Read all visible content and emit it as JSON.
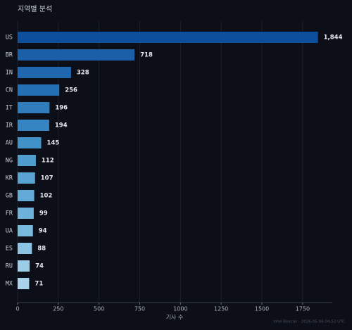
{
  "chart_data": {
    "type": "bar",
    "orientation": "horizontal",
    "title": "지역별 분석",
    "xlabel": "기사 수",
    "footer": "Intel Beacon · 2026-05-06 04:52 UTC",
    "categories": [
      "US",
      "BR",
      "IN",
      "CN",
      "IT",
      "IR",
      "AU",
      "NG",
      "KR",
      "GB",
      "FR",
      "UA",
      "ES",
      "RU",
      "MX"
    ],
    "values": [
      1844,
      718,
      328,
      256,
      196,
      194,
      145,
      112,
      107,
      102,
      99,
      94,
      88,
      74,
      71
    ],
    "value_labels": [
      "1,844",
      "718",
      "328",
      "256",
      "196",
      "194",
      "145",
      "112",
      "107",
      "102",
      "99",
      "94",
      "88",
      "74",
      "71"
    ],
    "colors": [
      "#0d4f9c",
      "#1a5fa8",
      "#1f68b0",
      "#2470b5",
      "#2f7dbd",
      "#3585c2",
      "#4092c9",
      "#4f9ccf",
      "#5aa4d3",
      "#63aad6",
      "#6db2da",
      "#7ab9de",
      "#8cc3e2",
      "#9ccce7",
      "#a9d3ea"
    ],
    "xlim": [
      0,
      1932
    ],
    "xticks": [
      0,
      250,
      500,
      750,
      1000,
      1250,
      1500,
      1750
    ],
    "grid": true
  }
}
